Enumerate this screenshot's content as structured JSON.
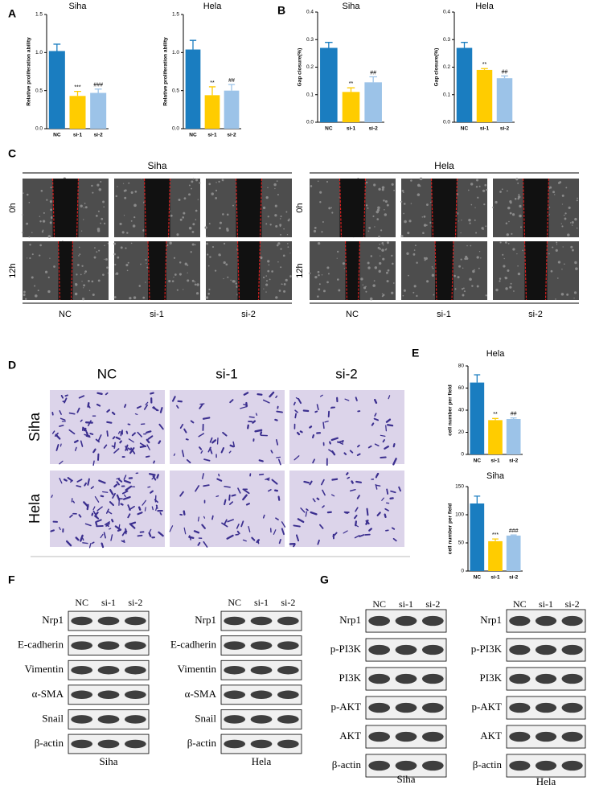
{
  "panel_labels": [
    "A",
    "B",
    "C",
    "D",
    "E",
    "F",
    "G"
  ],
  "chart_data": [
    {
      "type": "bar",
      "title": "Siha",
      "y_label": "Relative proliferation ability",
      "categories": [
        "NC",
        "si-1",
        "si-2"
      ],
      "values": [
        1.02,
        0.43,
        0.47
      ],
      "errors": [
        0.09,
        0.06,
        0.05
      ],
      "colors": [
        "#1a7dc0",
        "#ffcc00",
        "#9cc3e8"
      ],
      "annotations": {
        "si-1": "***",
        "si-2": "###"
      },
      "ylim": [
        0,
        1.5
      ],
      "yticks": [
        {
          "value": 0,
          "label": "0.0"
        },
        0.5,
        {
          "value": 1,
          "label": "1.0"
        },
        1.5
      ]
    },
    {
      "type": "bar",
      "title": "Hela",
      "y_label": "Relative proliferation ability",
      "categories": [
        "NC",
        "si-1",
        "si-2"
      ],
      "values": [
        1.04,
        0.44,
        0.5
      ],
      "errors": [
        0.12,
        0.11,
        0.08
      ],
      "colors": [
        "#1a7dc0",
        "#ffcc00",
        "#9cc3e8"
      ],
      "annotations": {
        "si-1": "**",
        "si-2": "##"
      },
      "ylim": [
        0,
        1.5
      ],
      "yticks": [
        {
          "value": 0,
          "label": "0.0"
        },
        0.5,
        {
          "value": 1,
          "label": "1.0"
        },
        1.5
      ]
    },
    {
      "type": "bar",
      "title": "Siha",
      "y_label": "Gap closure(%)",
      "categories": [
        "NC",
        "si-1",
        "si-2"
      ],
      "values": [
        0.27,
        0.11,
        0.145
      ],
      "errors": [
        0.02,
        0.015,
        0.02
      ],
      "colors": [
        "#1a7dc0",
        "#ffcc00",
        "#9cc3e8"
      ],
      "annotations": {
        "si-1": "**",
        "si-2": "##"
      },
      "ylim": [
        0,
        0.4
      ],
      "yticks": [
        {
          "value": 0,
          "label": "0.0"
        },
        0.1,
        0.2,
        0.3,
        0.4
      ]
    },
    {
      "type": "bar",
      "title": "Hela",
      "y_label": "Gap closure(%)",
      "categories": [
        "NC",
        "si-1",
        "si-2"
      ],
      "values": [
        0.27,
        0.19,
        0.16
      ],
      "errors": [
        0.02,
        0.005,
        0.008
      ],
      "colors": [
        "#1a7dc0",
        "#ffcc00",
        "#9cc3e8"
      ],
      "annotations": {
        "si-1": "**",
        "si-2": "##"
      },
      "ylim": [
        0,
        0.4
      ],
      "yticks": [
        {
          "value": 0,
          "label": "0.0"
        },
        0.1,
        0.2,
        0.3,
        0.4
      ]
    },
    {
      "type": "bar",
      "title": "Hela",
      "y_label": "cell number per field",
      "categories": [
        "NC",
        "si-1",
        "si-2"
      ],
      "values": [
        65,
        31,
        32
      ],
      "errors": [
        7,
        1.5,
        1
      ],
      "colors": [
        "#1a7dc0",
        "#ffcc00",
        "#9cc3e8"
      ],
      "annotations": {
        "si-1": "**",
        "si-2": "##"
      },
      "ylim": [
        0,
        80
      ],
      "yticks": [
        0,
        20,
        40,
        60,
        80
      ]
    },
    {
      "type": "bar",
      "title": "Siha",
      "y_label": "cell number per field",
      "categories": [
        "NC",
        "si-1",
        "si-2"
      ],
      "values": [
        120,
        53,
        63
      ],
      "errors": [
        13,
        4,
        1
      ],
      "colors": [
        "#1a7dc0",
        "#ffcc00",
        "#9cc3e8"
      ],
      "annotations": {
        "si-1": "***",
        "si-2": "###"
      },
      "ylim": [
        0,
        150
      ],
      "yticks": [
        0,
        50,
        100,
        150
      ]
    }
  ],
  "wound_healing": {
    "rows": [
      "0h",
      "12h"
    ],
    "groups": [
      {
        "title": "Siha",
        "columns": [
          "NC",
          "si-1",
          "si-2"
        ]
      },
      {
        "title": "Hela",
        "columns": [
          "NC",
          "si-1",
          "si-2"
        ]
      }
    ]
  },
  "transwell": {
    "columns": [
      "NC",
      "si-1",
      "si-2"
    ],
    "rows": [
      "Siha",
      "Hela"
    ]
  },
  "western_blot_emt": {
    "blots": [
      {
        "caption": "Siha",
        "lanes": [
          "NC",
          "si-1",
          "si-2"
        ],
        "rows": [
          "Nrp1",
          "E-cadherin",
          "Vimentin",
          "α-SMA",
          "Snail",
          "β-actin"
        ]
      },
      {
        "caption": "Hela",
        "lanes": [
          "NC",
          "si-1",
          "si-2"
        ],
        "rows": [
          "Nrp1",
          "E-cadherin",
          "Vimentin",
          "α-SMA",
          "Snail",
          "β-actin"
        ]
      }
    ]
  },
  "western_blot_pi3k": {
    "blots": [
      {
        "caption": "Siha",
        "lanes": [
          "NC",
          "si-1",
          "si-2"
        ],
        "rows": [
          "Nrp1",
          "p-PI3K",
          "PI3K",
          "p-AKT",
          "AKT",
          "β-actin"
        ]
      },
      {
        "caption": "Hela",
        "lanes": [
          "NC",
          "si-1",
          "si-2"
        ],
        "rows": [
          "Nrp1",
          "p-PI3K",
          "PI3K",
          "p-AKT",
          "AKT",
          "β-actin"
        ]
      }
    ]
  }
}
